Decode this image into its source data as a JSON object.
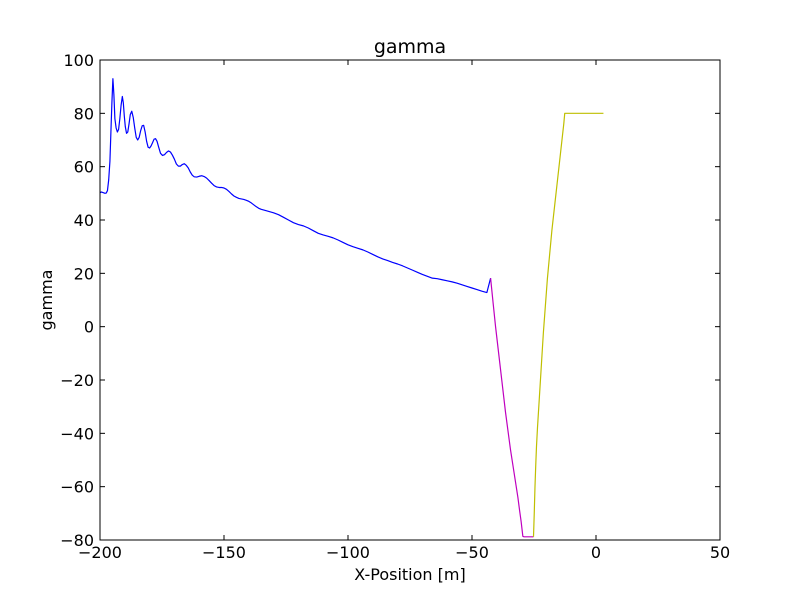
{
  "chart_data": {
    "type": "line",
    "title": "gamma",
    "xlabel": "X-Position [m]",
    "ylabel": "gamma",
    "xlim": [
      -200,
      50
    ],
    "ylim": [
      -80,
      100
    ],
    "xticks": [
      -200,
      -150,
      -100,
      -50,
      0,
      50
    ],
    "yticks": [
      -80,
      -60,
      -40,
      -20,
      0,
      20,
      40,
      60,
      80,
      100
    ],
    "xtick_labels": [
      "−200",
      "−150",
      "−100",
      "−50",
      "0",
      "50"
    ],
    "ytick_labels": [
      "−80",
      "−60",
      "−40",
      "−20",
      "0",
      "20",
      "40",
      "60",
      "80",
      "100"
    ],
    "grid": false,
    "series": [
      {
        "color": "#0000ff",
        "x": [
          -200,
          -199.5,
          -198.5,
          -198,
          -197.5,
          -197,
          -196.5,
          -196,
          -195.6,
          -195.2,
          -194.8,
          -194.4,
          -194,
          -193.5,
          -193,
          -192.5,
          -192,
          -191.5,
          -191,
          -190.6,
          -190.2,
          -189.8,
          -189.3,
          -188.8,
          -188.3,
          -187.8,
          -187.2,
          -186.6,
          -186,
          -185.4,
          -184.8,
          -184.2,
          -183.6,
          -183,
          -182.4,
          -181.8,
          -181.2,
          -180.6,
          -180,
          -179.4,
          -178.8,
          -178.2,
          -177.6,
          -177,
          -176.4,
          -175.6,
          -174.8,
          -174,
          -173.2,
          -172.4,
          -171.6,
          -170.8,
          -170,
          -169.2,
          -168.4,
          -167.6,
          -166.8,
          -166,
          -165.2,
          -164.4,
          -163.6,
          -162.8,
          -162,
          -161,
          -160,
          -159,
          -158,
          -157,
          -156,
          -155,
          -154,
          -153,
          -152,
          -151,
          -150,
          -149,
          -148,
          -147,
          -146,
          -145,
          -144,
          -143,
          -142,
          -141,
          -140,
          -139,
          -138,
          -137,
          -136,
          -135,
          -133,
          -130,
          -128,
          -126,
          -124,
          -122,
          -120,
          -118,
          -116,
          -114,
          -112,
          -110,
          -108,
          -106,
          -104,
          -102,
          -100,
          -98,
          -96,
          -94,
          -92,
          -90,
          -88,
          -86,
          -84,
          -82,
          -80,
          -78,
          -76,
          -74,
          -72,
          -70,
          -68,
          -66,
          -64,
          -62,
          -60,
          -58,
          -56,
          -54,
          -52,
          -50,
          -48,
          -46,
          -44,
          -42.5
        ],
        "y": [
          50.2,
          50.5,
          50.2,
          50.0,
          50.1,
          51.0,
          55.0,
          62.0,
          73.0,
          84.0,
          93.0,
          87.0,
          78.0,
          74.5,
          73.0,
          74.0,
          78.0,
          83.0,
          86.3,
          84.0,
          79.0,
          75.0,
          72.5,
          73.0,
          76.0,
          79.5,
          80.8,
          78.5,
          74.5,
          71.0,
          70.0,
          71.0,
          73.5,
          75.3,
          75.5,
          73.0,
          69.5,
          67.3,
          67.0,
          67.8,
          69.0,
          70.3,
          70.5,
          69.5,
          67.5,
          65.0,
          64.2,
          64.5,
          65.3,
          65.9,
          65.5,
          64.3,
          62.8,
          61.0,
          60.2,
          60.2,
          60.8,
          61.1,
          60.5,
          59.5,
          58.0,
          56.8,
          56.2,
          56.1,
          56.4,
          56.6,
          56.3,
          55.7,
          54.8,
          53.8,
          52.9,
          52.4,
          52.2,
          52.2,
          52.0,
          51.5,
          50.7,
          49.8,
          49.0,
          48.5,
          48.1,
          47.9,
          47.7,
          47.4,
          47.0,
          46.4,
          45.7,
          45.0,
          44.4,
          44.0,
          43.5,
          42.7,
          42.0,
          41.0,
          40.0,
          39.0,
          38.3,
          37.8,
          37.0,
          36.0,
          35.0,
          34.4,
          33.9,
          33.3,
          32.5,
          31.6,
          30.7,
          30.0,
          29.4,
          28.8,
          28.0,
          27.1,
          26.2,
          25.4,
          24.8,
          24.1,
          23.5,
          22.8,
          22.0,
          21.2,
          20.4,
          19.6,
          18.9,
          18.2,
          18.0,
          17.6,
          17.2,
          16.8,
          16.3,
          15.7,
          15.1,
          14.5,
          13.9,
          13.3,
          12.8,
          18.2
        ]
      },
      {
        "color": "#bf00bf",
        "x": [
          -42.5,
          -41.5,
          -40.5,
          -39.5,
          -38.5,
          -37.5,
          -36.5,
          -35.5,
          -34.5,
          -33.5,
          -32.5,
          -31.5,
          -30.8,
          -30.2,
          -29.5,
          -29,
          -28,
          -27,
          -26,
          -25.2
        ],
        "y": [
          18.2,
          9,
          0,
          -8,
          -16,
          -24,
          -32,
          -39,
          -46,
          -52,
          -58,
          -64,
          -69,
          -73,
          -78.6,
          -78.8,
          -78.8,
          -78.8,
          -78.8,
          -78.8
        ]
      },
      {
        "color": "#bfbf00",
        "x": [
          -25.2,
          -24.9,
          -24.6,
          -24.3,
          -24,
          -23.6,
          -23.2,
          -22.8,
          -22.4,
          -22,
          -21.6,
          -21.2,
          -20.8,
          -20.4,
          -20,
          -19.6,
          -19,
          -18.4,
          -17.8,
          -17.2,
          -16.6,
          -16,
          -15.4,
          -14.8,
          -14.2,
          -13.6,
          -13,
          -12.6,
          -12,
          -10,
          -8,
          -6,
          -4,
          -2,
          0,
          2,
          3
        ],
        "y": [
          -78.8,
          -70,
          -60,
          -52,
          -45,
          -38,
          -32,
          -26,
          -20,
          -14,
          -8,
          -2,
          3,
          8,
          13,
          18,
          24,
          30,
          36,
          41,
          46,
          51,
          56,
          61,
          66,
          71,
          76,
          80,
          80,
          80,
          80,
          80,
          80,
          80,
          80,
          80,
          80
        ]
      }
    ]
  }
}
